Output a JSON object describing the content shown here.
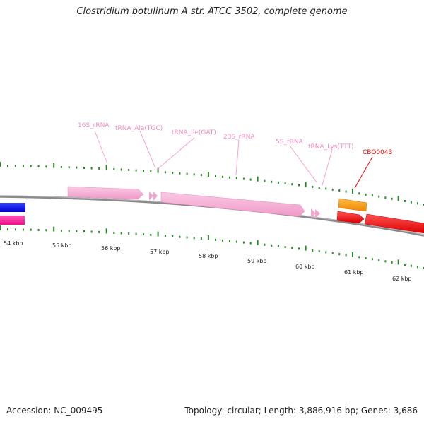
{
  "title": "Clostridium botulinum A str. ATCC 3502, complete genome",
  "footer": {
    "accession": "Accession: NC_009495",
    "stats": "Topology: circular; Length: 3,886,916 bp; Genes: 3,686"
  },
  "colors": {
    "rrna": "#f5a3cf",
    "rrna_label": "#f08cc0",
    "cds_red": "#ff0000",
    "cds_orange": "#ff9900",
    "cds_blue": "#0000ee",
    "cds_magenta": "#ff2299",
    "tick": "#228822",
    "backbone": "#808080"
  },
  "scale_labels": [
    "54 kbp",
    "55 kbp",
    "56 kbp",
    "57 kbp",
    "58 kbp",
    "59 kbp",
    "60 kbp",
    "61 kbp",
    "62 kbp"
  ],
  "feature_labels": [
    "16S_rRNA",
    "tRNA_Ala(TGC)",
    "tRNA_Ile(GAT)",
    "23S_rRNA",
    "5S_rRNA",
    "tRNA_Lys(TTT)",
    "CBO0043"
  ]
}
